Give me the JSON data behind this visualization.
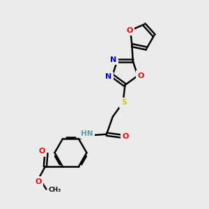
{
  "background_color": "#ebebeb",
  "bond_color": "#000000",
  "atom_colors": {
    "O": "#ff0000",
    "N": "#0000cd",
    "S": "#cccc00",
    "C": "#000000",
    "H": "#5f9ea0"
  },
  "figsize": [
    3.0,
    3.0
  ],
  "dpi": 100
}
